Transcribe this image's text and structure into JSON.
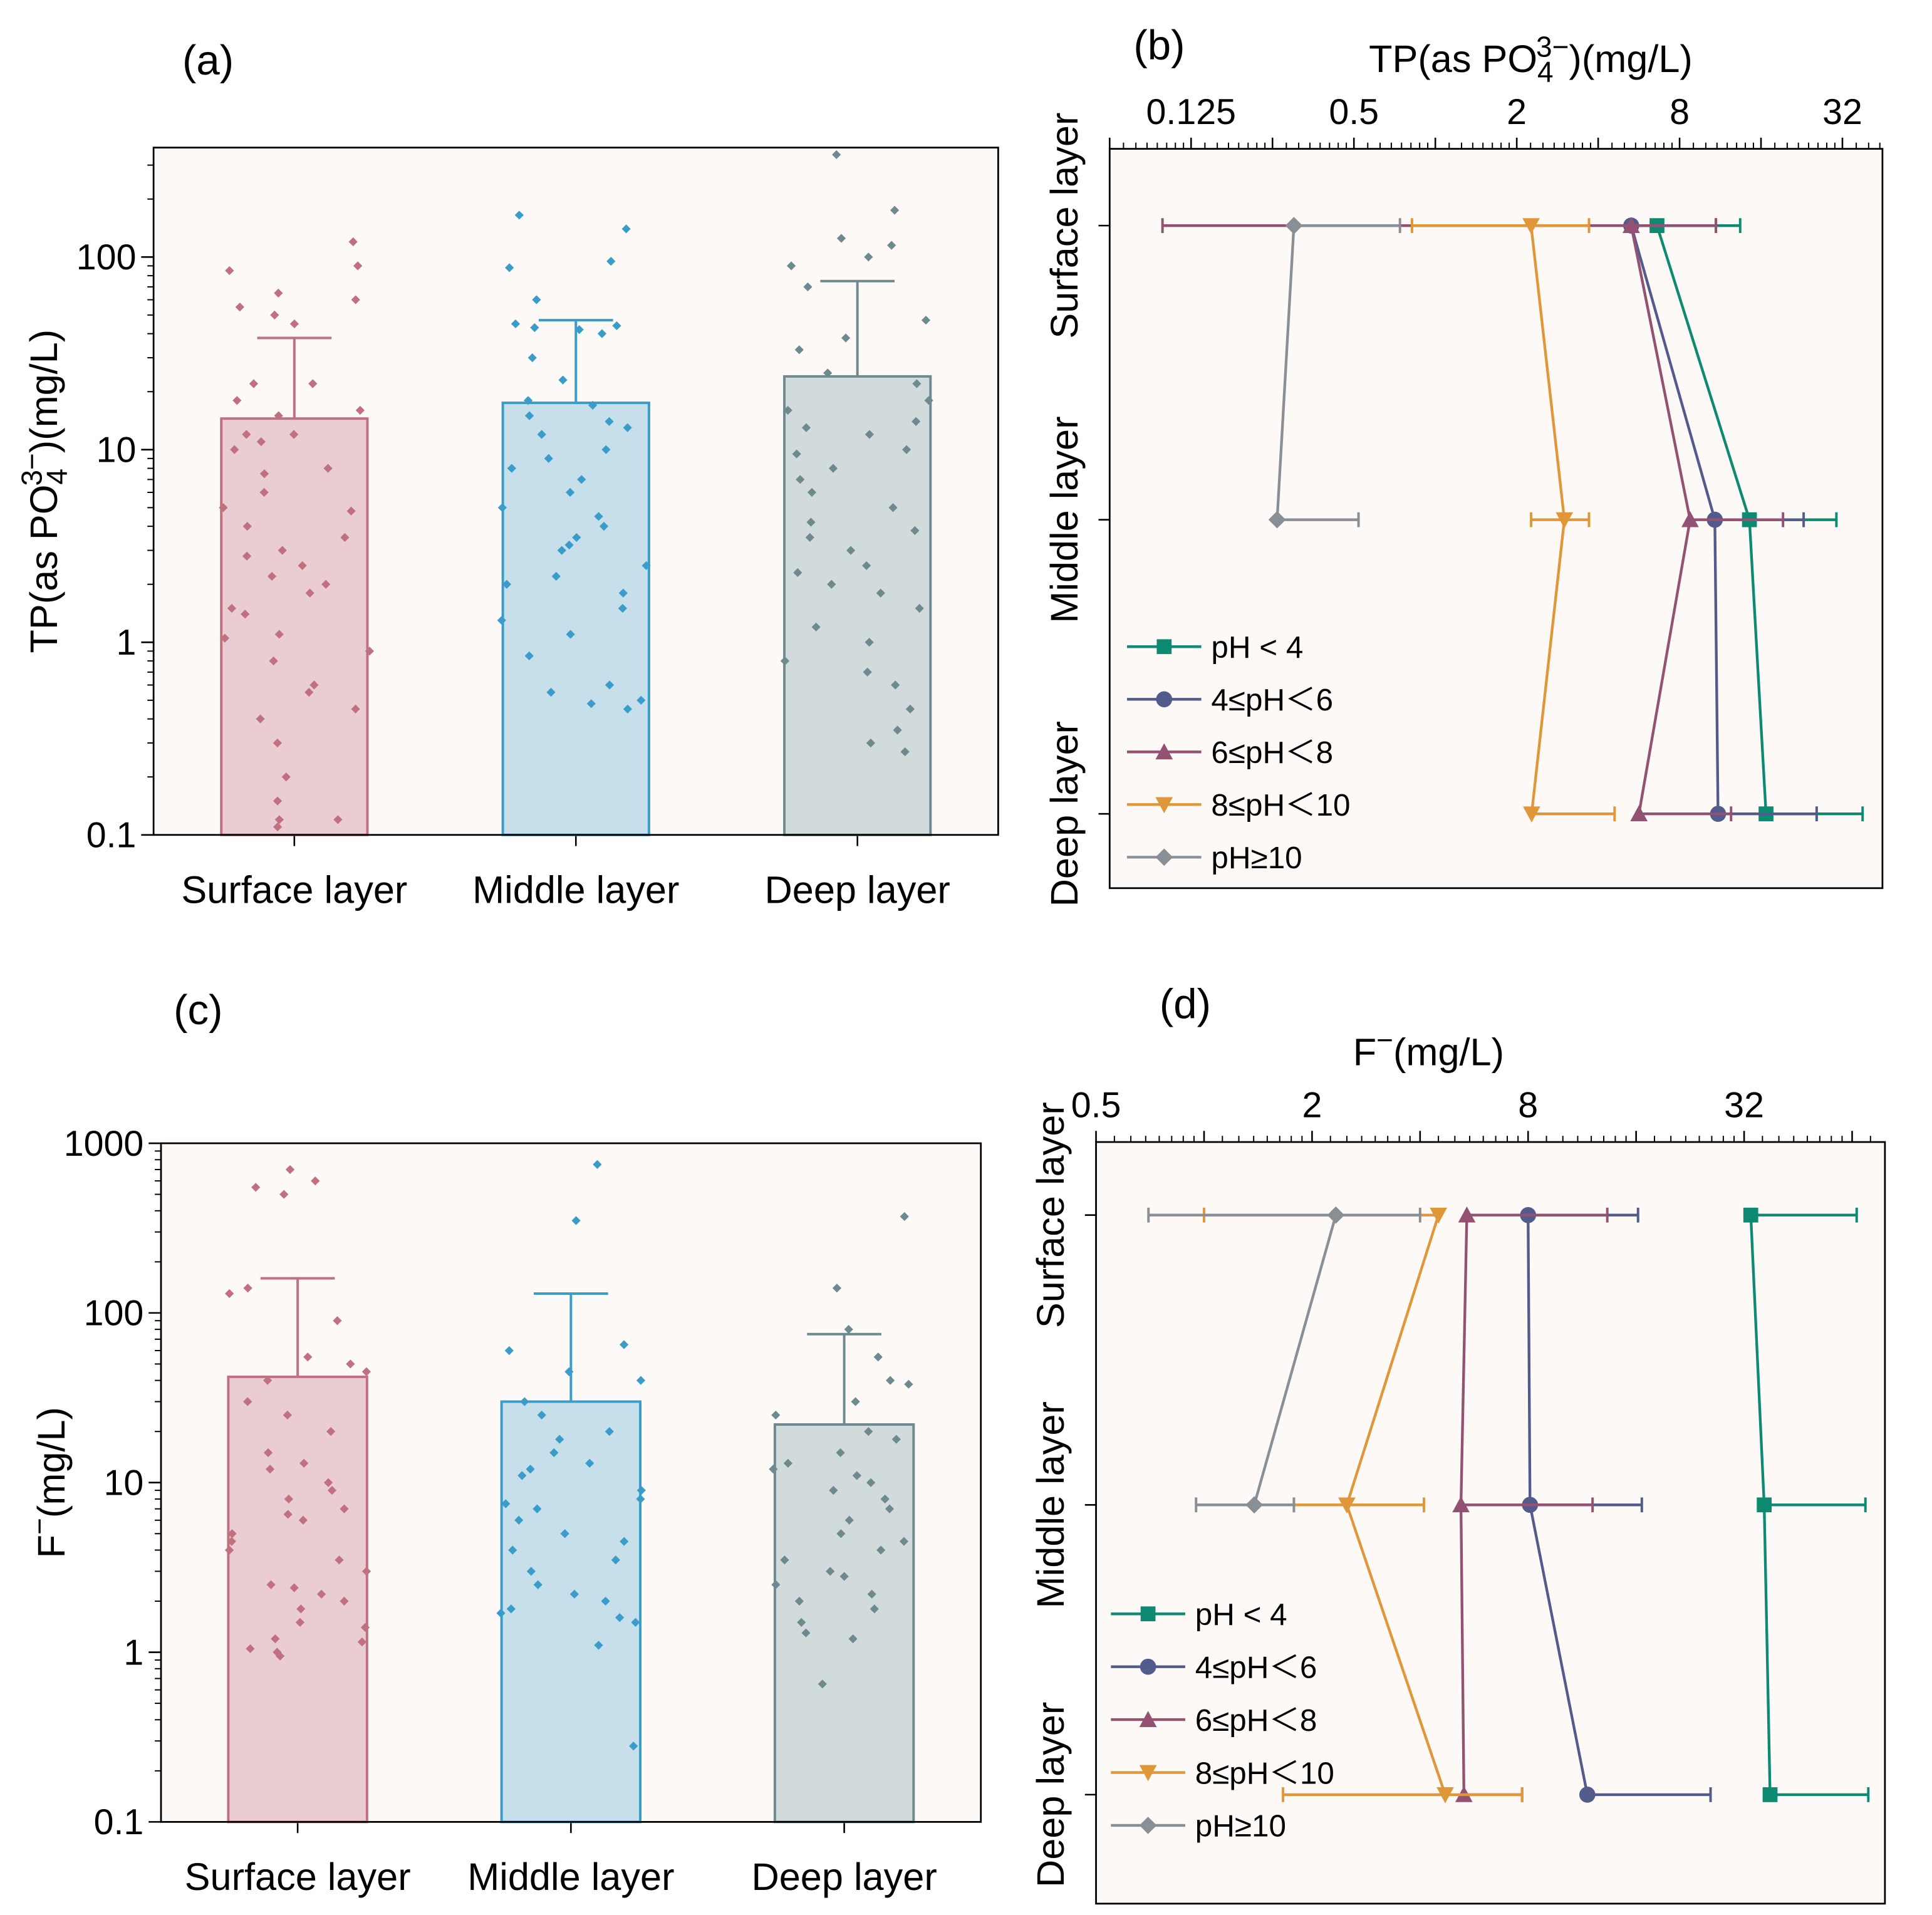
{
  "chart_data": [
    {
      "panel": "(a)",
      "type": "bar",
      "title": "",
      "ylabel": {
        "main": "TP(as PO",
        "sub": "4",
        "sup": "3−",
        "tail": ")(mg/L)"
      },
      "xlabel": "",
      "yscale": "log10",
      "ylim": [
        0.1,
        370
      ],
      "yticks": [
        0.1,
        1,
        10,
        100
      ],
      "ytick_labels": [
        "0.1",
        "1",
        "10",
        "100"
      ],
      "categories": [
        "Surface  layer",
        "Middle  layer",
        "Deep  layer"
      ],
      "values": [
        14.5,
        17.5,
        24
      ],
      "error_upper": [
        38,
        47,
        75
      ],
      "colors": {
        "stroke": [
          "#c0707e",
          "#3a9cc9",
          "#6f8a8f"
        ],
        "fill": [
          "#e9cdd3",
          "#c6dfeb",
          "#d2dbdb"
        ]
      },
      "points": [
        [
          120,
          90,
          85,
          65,
          60,
          55,
          50,
          45,
          22,
          22,
          18,
          16,
          15,
          12,
          12,
          11,
          10,
          8,
          7.5,
          6,
          5,
          4.8,
          4,
          3.5,
          3,
          2.8,
          2.5,
          2.2,
          2,
          1.8,
          1.5,
          1.4,
          1.1,
          1.05,
          0.9,
          0.8,
          0.6,
          0.55,
          0.45,
          0.4,
          0.3,
          0.2,
          0.15,
          0.12,
          0.12,
          0.11
        ],
        [
          165,
          140,
          95,
          88,
          60,
          45,
          44,
          43,
          42,
          40,
          30,
          23,
          18,
          17,
          15,
          14,
          13,
          12,
          10,
          9,
          8,
          7,
          6,
          5,
          4.5,
          4,
          3.5,
          3.2,
          3,
          2.5,
          2.2,
          2,
          1.8,
          1.5,
          1.3,
          1.1,
          0.85,
          0.6,
          0.55,
          0.5,
          0.48,
          0.45
        ],
        [
          340,
          175,
          125,
          115,
          100,
          90,
          70,
          47,
          38,
          33,
          25,
          22,
          18,
          16,
          14,
          13,
          12,
          10,
          9.5,
          8,
          7,
          6,
          5,
          4.2,
          3.8,
          3.5,
          3,
          2.5,
          2.3,
          2,
          1.8,
          1.5,
          1.2,
          1,
          0.8,
          0.7,
          0.6,
          0.45,
          0.35,
          0.3,
          0.27
        ]
      ]
    },
    {
      "panel": "(b)",
      "type": "line",
      "xlabel": {
        "main": "TP(as PO",
        "sub": "4",
        "sup": "3−",
        "tail": ")(mg/L)"
      },
      "xscale": "log2",
      "xlim": [
        0.0625,
        45
      ],
      "xticks": [
        0.125,
        0.5,
        2,
        8,
        32
      ],
      "xtick_labels": [
        "0.125",
        "0.5",
        "2",
        "8",
        "32"
      ],
      "categories": [
        "Surface  layer",
        "Middle layer",
        "Deep layer"
      ],
      "legend": "bottom-left",
      "series": [
        {
          "name": "pH < 4",
          "color": "#0e8a73",
          "marker": "square",
          "values": [
            6.6,
            14.5,
            16.7
          ],
          "err_low": [
            6.6,
            14.5,
            16.7
          ],
          "err_high": [
            13.4,
            30.4,
            38
          ]
        },
        {
          "name": "4≤pH＜6",
          "color": "#525b8b",
          "marker": "circle",
          "values": [
            5.3,
            10.8,
            11.1
          ],
          "err_low": [
            5.3,
            10.8,
            11.1
          ],
          "err_high": [
            10.9,
            23,
            25.7
          ]
        },
        {
          "name": "6≤pH＜8",
          "color": "#935272",
          "marker": "triangle-up",
          "values": [
            5.3,
            8.75,
            5.66
          ],
          "err_low": [
            0.098,
            8.75,
            5.66
          ],
          "err_high": [
            10.9,
            19.3,
            12.4
          ]
        },
        {
          "name": "8≤pH＜10",
          "color": "#e0973a",
          "marker": "triangle-down",
          "values": [
            2.26,
            3.0,
            2.27
          ],
          "err_low": [
            0.82,
            2.26,
            2.27
          ],
          "err_high": [
            3.7,
            3.7,
            4.6
          ]
        },
        {
          "name": "pH≥10",
          "color": "#8a8f96",
          "marker": "diamond",
          "values": [
            0.3,
            0.26,
            null
          ],
          "err_low": [
            0.3,
            0.26,
            null
          ],
          "err_high": [
            0.74,
            0.52,
            null
          ]
        }
      ]
    },
    {
      "panel": "(c)",
      "type": "bar",
      "title": "",
      "ylabel": {
        "main": "F",
        "sup": "−",
        "tail": "(mg/L)"
      },
      "xlabel": "",
      "yscale": "log10",
      "ylim": [
        0.1,
        1000
      ],
      "yticks": [
        0.1,
        1,
        10,
        100,
        1000
      ],
      "ytick_labels": [
        "0.1",
        "1",
        "10",
        "100",
        "1000"
      ],
      "categories": [
        "Surface  layer",
        "Middle  layer",
        "Deep  layer"
      ],
      "values": [
        42,
        30,
        22
      ],
      "error_upper": [
        160,
        130,
        75
      ],
      "colors": {
        "stroke": [
          "#c0707e",
          "#3a9cc9",
          "#6f8a8f"
        ],
        "fill": [
          "#e9cdd3",
          "#c6dfeb",
          "#d2dbdb"
        ]
      },
      "points": [
        [
          700,
          600,
          550,
          500,
          140,
          130,
          90,
          55,
          50,
          45,
          40,
          30,
          25,
          20,
          15,
          13,
          12,
          10,
          9,
          8,
          7,
          6.5,
          6,
          5,
          4.5,
          4,
          3.5,
          3,
          2.5,
          2.4,
          2.2,
          2,
          1.8,
          1.5,
          1.4,
          1.2,
          1.15,
          1.05,
          1,
          0.95
        ],
        [
          750,
          350,
          65,
          60,
          45,
          40,
          30,
          25,
          20,
          18,
          15,
          13,
          12,
          11,
          9,
          8,
          7.5,
          7,
          6,
          5,
          4.5,
          4,
          3.5,
          3,
          2.5,
          2.2,
          2,
          1.8,
          1.7,
          1.6,
          1.5,
          1.1,
          0.28
        ],
        [
          370,
          140,
          80,
          55,
          40,
          38,
          30,
          25,
          20,
          18,
          15,
          13,
          12,
          11,
          10,
          9,
          8,
          7,
          6,
          5,
          4.5,
          4,
          3.5,
          3,
          2.8,
          2.5,
          2.2,
          2,
          1.8,
          1.5,
          1.3,
          1.2,
          0.65
        ]
      ]
    },
    {
      "panel": "(d)",
      "type": "line",
      "xlabel": {
        "main": "F",
        "sup": "−",
        "tail": "(mg/L)"
      },
      "xscale": "log2",
      "xlim": [
        0.5,
        79
      ],
      "xticks": [
        0.5,
        2,
        8,
        32
      ],
      "xtick_labels": [
        "0.5",
        "2",
        "8",
        "32"
      ],
      "categories": [
        "Surface  layer",
        "Middle layer",
        "Deep layer"
      ],
      "legend": "bottom-left",
      "series": [
        {
          "name": "pH < 4",
          "color": "#0e8a73",
          "marker": "square",
          "values": [
            33.4,
            36.4,
            37.8
          ],
          "err_low": [
            33.4,
            36.4,
            37.8
          ],
          "err_high": [
            65.9,
            69.7,
            71
          ]
        },
        {
          "name": "4≤pH＜6",
          "color": "#525b8b",
          "marker": "circle",
          "values": [
            8,
            8.1,
            11.7
          ],
          "err_low": [
            8,
            8.1,
            11.7
          ],
          "err_high": [
            16.2,
            16.6,
            25.8
          ]
        },
        {
          "name": "6≤pH＜8",
          "color": "#935272",
          "marker": "triangle-up",
          "values": [
            5.4,
            5.2,
            5.3
          ],
          "err_low": [
            5.4,
            5.2,
            5.3
          ],
          "err_high": [
            13.3,
            12.1,
            7.7
          ]
        },
        {
          "name": "8≤pH＜10",
          "color": "#e0973a",
          "marker": "triangle-down",
          "values": [
            4.5,
            2.5,
            4.7
          ],
          "err_low": [
            1.0,
            1.78,
            1.66
          ],
          "err_high": [
            4.5,
            4.1,
            7.7
          ]
        },
        {
          "name": "pH≥10",
          "color": "#8a8f96",
          "marker": "diamond",
          "values": [
            2.33,
            1.38,
            null
          ],
          "err_low": [
            0.7,
            0.95,
            null
          ],
          "err_high": [
            4.0,
            1.78,
            null
          ]
        }
      ]
    }
  ]
}
